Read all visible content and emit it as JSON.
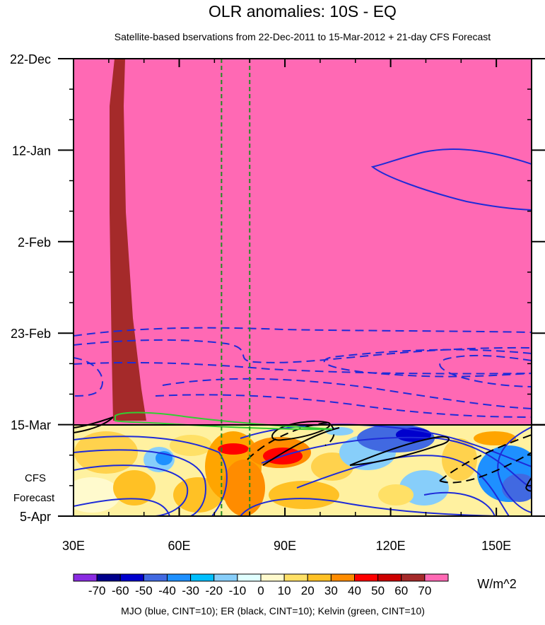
{
  "chart_data": {
    "type": "heatmap",
    "title": "OLR anomalies: 10S - EQ",
    "subtitle": "Satellite-based bservations from 22-Dec-2011 to 15-Mar-2012 + 21-day CFS Forecast",
    "x": {
      "ticks": [
        30,
        60,
        90,
        120,
        150
      ],
      "tick_labels": [
        "30E",
        "60E",
        "90E",
        "120E",
        "150E"
      ],
      "range": [
        30,
        160
      ]
    },
    "y": {
      "ticks": [
        "2011-12-22",
        "2012-01-12",
        "2012-02-02",
        "2012-02-23",
        "2012-03-15",
        "2012-04-05"
      ],
      "tick_labels": [
        "22-Dec",
        "12-Jan",
        "2-Feb",
        "23-Feb",
        "15-Mar",
        "5-Apr"
      ],
      "range": [
        "2011-12-22",
        "2012-04-05"
      ],
      "direction": "time increases downward"
    },
    "forecast_label": [
      "CFS",
      "Forecast"
    ],
    "forecast_start": "2012-03-15",
    "reference_lines_lon": [
      72,
      80
    ],
    "colorbar": {
      "levels": [
        "-70",
        "-60",
        "-50",
        "-40",
        "-30",
        "-20",
        "-10",
        "0",
        "10",
        "20",
        "30",
        "40",
        "50",
        "60",
        "70"
      ],
      "colors": [
        "#8a2be2",
        "#00008b",
        "#0000cd",
        "#4169e1",
        "#1e90ff",
        "#00bfff",
        "#87cefa",
        "#e0ffff",
        "#fffacd",
        "#ffe066",
        "#ffc125",
        "#ff8c00",
        "#ff0000",
        "#cd0000",
        "#a52a2a",
        "#ff69b4"
      ],
      "units": "W/m^2"
    },
    "footer": "MJO (blue, CINT=10); ER (black, CINT=10); Kelvin (green, CINT=10)",
    "observed_field_value": 70,
    "colors": {
      "observed_fill": "#ff69b4",
      "dark_band": "#a52a2a",
      "mjo_contours": "#1e2bd8",
      "er_contours": "#000000",
      "kelvin_contours": "#32cd32",
      "reference_lines": "#228b22"
    }
  }
}
